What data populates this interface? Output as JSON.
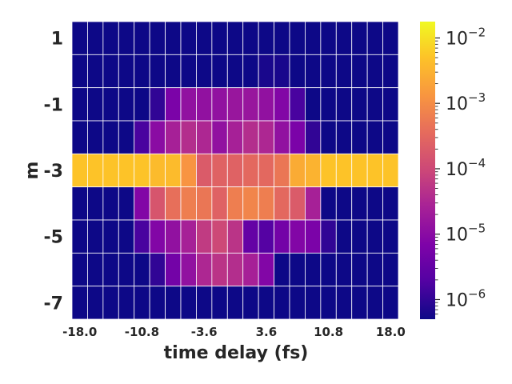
{
  "chart_data": {
    "type": "heatmap",
    "xlabel": "time delay (fs)",
    "ylabel": "m",
    "x_tick_labels": [
      "-18.0",
      "-10.8",
      "-3.6",
      "3.6",
      "10.8",
      "18.0"
    ],
    "y_tick_labels": [
      "1",
      "-1",
      "-3",
      "-5",
      "-7"
    ],
    "x": [
      -18.0,
      -16.2,
      -14.4,
      -12.6,
      -10.8,
      -9.0,
      -7.2,
      -5.4,
      -3.6,
      -1.8,
      0.0,
      1.8,
      3.6,
      5.4,
      7.2,
      9.0,
      10.8,
      12.6,
      14.4,
      16.2,
      18.0
    ],
    "y": [
      1,
      0,
      -1,
      -2,
      -3,
      -4,
      -5,
      -6,
      -7
    ],
    "color_scale": "log",
    "colormap": "plasma",
    "vmin_log10": -6.3,
    "vmax_log10": -1.75,
    "colorbar_ticks": [
      {
        "base": "10",
        "exp": "−2",
        "log10": -2
      },
      {
        "base": "10",
        "exp": "−3",
        "log10": -3
      },
      {
        "base": "10",
        "exp": "−4",
        "log10": -4
      },
      {
        "base": "10",
        "exp": "−5",
        "log10": -5
      },
      {
        "base": "10",
        "exp": "−6",
        "log10": -6
      }
    ],
    "log10_values": [
      [
        -6.3,
        -6.3,
        -6.3,
        -6.3,
        -6.3,
        -6.3,
        -6.3,
        -6.3,
        -6.3,
        -6.3,
        -6.3,
        -6.3,
        -6.3,
        -6.3,
        -6.3,
        -6.3,
        -6.3,
        -6.3,
        -6.3,
        -6.3,
        -6.3
      ],
      [
        -6.3,
        -6.3,
        -6.3,
        -6.3,
        -6.3,
        -6.3,
        -6.3,
        -6.3,
        -6.3,
        -6.3,
        -6.3,
        -6.3,
        -6.2,
        -6.2,
        -6.3,
        -6.3,
        -6.3,
        -6.3,
        -6.3,
        -6.3,
        -6.3
      ],
      [
        -6.3,
        -6.3,
        -6.3,
        -6.3,
        -6.3,
        -6.0,
        -5.2,
        -4.9,
        -4.9,
        -4.9,
        -4.8,
        -4.8,
        -4.9,
        -5.1,
        -5.8,
        -6.3,
        -6.3,
        -6.3,
        -6.3,
        -6.3,
        -6.3
      ],
      [
        -6.3,
        -6.3,
        -6.3,
        -6.3,
        -5.8,
        -5.0,
        -4.6,
        -4.4,
        -4.5,
        -4.9,
        -4.6,
        -4.4,
        -4.5,
        -4.9,
        -5.2,
        -6.0,
        -6.3,
        -6.3,
        -6.3,
        -6.3,
        -6.3
      ],
      [
        -2.3,
        -2.3,
        -2.3,
        -2.3,
        -2.3,
        -2.4,
        -2.4,
        -2.9,
        -3.7,
        -3.6,
        -3.6,
        -3.5,
        -3.5,
        -3.3,
        -2.6,
        -2.5,
        -2.3,
        -2.3,
        -2.3,
        -2.3,
        -2.3
      ],
      [
        -6.3,
        -6.3,
        -6.3,
        -6.3,
        -5.1,
        -3.8,
        -3.4,
        -3.2,
        -3.3,
        -3.6,
        -3.2,
        -3.1,
        -3.2,
        -3.5,
        -3.7,
        -4.6,
        -6.3,
        -6.3,
        -6.3,
        -6.3,
        -6.3
      ],
      [
        -6.3,
        -6.3,
        -6.3,
        -6.3,
        -5.8,
        -5.1,
        -4.9,
        -4.6,
        -4.2,
        -4.0,
        -4.3,
        -5.5,
        -5.7,
        -5.3,
        -5.1,
        -5.2,
        -6.0,
        -6.3,
        -6.3,
        -6.3,
        -6.3
      ],
      [
        -6.3,
        -6.3,
        -6.3,
        -6.3,
        -6.3,
        -6.0,
        -5.3,
        -4.9,
        -4.5,
        -4.3,
        -4.4,
        -4.6,
        -5.1,
        -6.3,
        -6.3,
        -6.3,
        -6.3,
        -6.3,
        -6.3,
        -6.3,
        -6.3
      ],
      [
        -6.3,
        -6.3,
        -6.3,
        -6.3,
        -6.3,
        -6.3,
        -6.3,
        -6.3,
        -6.3,
        -6.3,
        -6.3,
        -6.3,
        -6.3,
        -6.3,
        -6.3,
        -6.3,
        -6.3,
        -6.3,
        -6.3,
        -6.3,
        -6.3
      ]
    ]
  }
}
